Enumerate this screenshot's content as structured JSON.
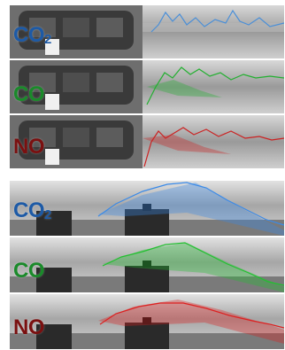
{
  "top_panel": {
    "strips": [
      {
        "label_main": "CO",
        "label_sub": "2",
        "color": "#4a8fd8"
      },
      {
        "label_main": "CO",
        "label_sub": "",
        "color": "#22b030"
      },
      {
        "label_main": "NO",
        "label_sub": "",
        "color": "#cc2222"
      }
    ]
  },
  "bottom_panel": {
    "strips": [
      {
        "label_main": "CO",
        "label_sub": "2",
        "color": "#3a8ae8"
      },
      {
        "label_main": "CO",
        "label_sub": "",
        "color": "#22c030"
      },
      {
        "label_main": "NO",
        "label_sub": "",
        "color": "#dd2020"
      }
    ]
  }
}
